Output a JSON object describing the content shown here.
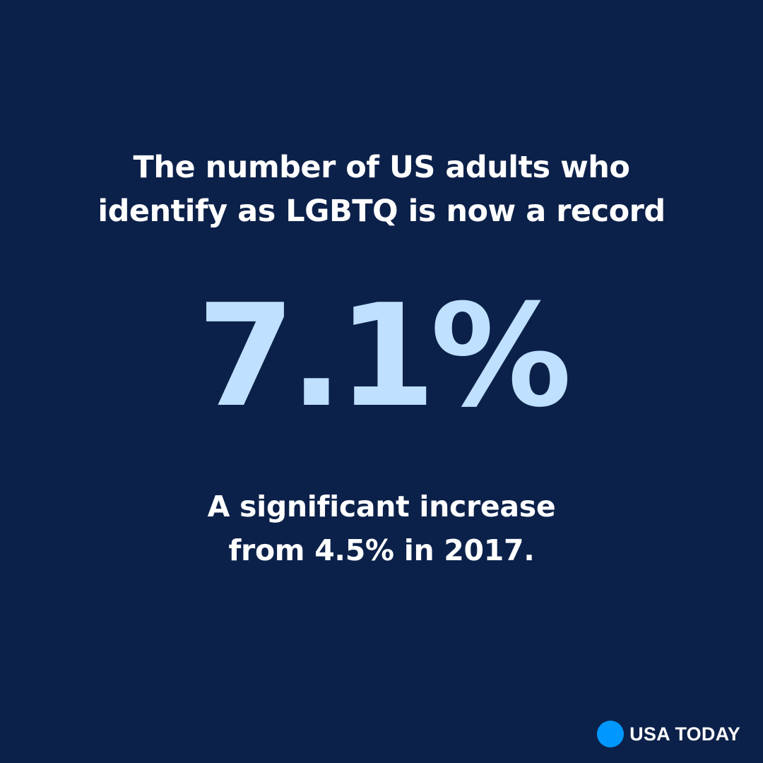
{
  "headline": {
    "line1": "The number of US adults who",
    "line2": "identify as LGBTQ is now a record"
  },
  "stat": {
    "value": "7.1%"
  },
  "subline": {
    "line1": "A significant increase",
    "line2": "from 4.5% in 2017."
  },
  "brand": {
    "name": "USA TODAY",
    "dot_color": "#0098fe",
    "icon": "usa-today-circle-logo"
  },
  "colors": {
    "background": "#0c214a",
    "stat": "#bfe0ff",
    "text": "#ffffff"
  }
}
